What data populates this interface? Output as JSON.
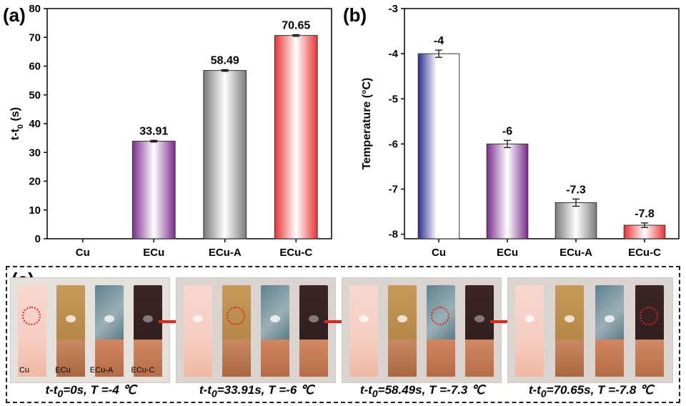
{
  "panels": {
    "a": "(a)",
    "b": "(b)",
    "c": "(c)"
  },
  "chart_data": [
    {
      "type": "bar",
      "title": "",
      "ylabel": "t-t0 (s)",
      "ylabel_main": "t-t",
      "ylabel_sub": "0",
      "ylabel_unit": " (s)",
      "categories": [
        "Cu",
        "ECu",
        "ECu-A",
        "ECu-C"
      ],
      "values": [
        null,
        33.91,
        58.49,
        70.65
      ],
      "data_labels": [
        "",
        "33.91",
        "58.49",
        "70.65"
      ],
      "ylim": [
        0,
        80
      ],
      "yticks": [
        0,
        10,
        20,
        30,
        40,
        50,
        60,
        70,
        80
      ],
      "error": [
        0,
        0.3,
        0.3,
        0.3
      ],
      "bar_colors": [
        "#2f2f8f",
        "#7b2d8e",
        "#7a7a7a",
        "#e83333"
      ]
    },
    {
      "type": "bar",
      "title": "",
      "ylabel": "Temperature (°C)",
      "categories": [
        "Cu",
        "ECu",
        "ECu-A",
        "ECu-C"
      ],
      "values": [
        -4,
        -6,
        -7.3,
        -7.8
      ],
      "data_labels": [
        "-4",
        "-6",
        "-7.3",
        "-7.8"
      ],
      "ylim": [
        -8.1,
        -3
      ],
      "baseline": -8.1,
      "yticks": [
        -8,
        -7,
        -6,
        -5,
        -4,
        -3
      ],
      "error": [
        0.08,
        0.08,
        0.08,
        0.05
      ],
      "bar_colors": [
        "#2b2f8c",
        "#7b2d8e",
        "#7a7a7a",
        "#e83333"
      ]
    }
  ],
  "photos": {
    "strip_labels": [
      "Cu",
      "ECu",
      "ECu-A",
      "ECu-C"
    ],
    "captions": [
      {
        "pre": "t-t",
        "sub": "0",
        "post": "=0s, T =-4 ℃"
      },
      {
        "pre": "t-t",
        "sub": "0",
        "post": "=33.91s, T =-6 ℃"
      },
      {
        "pre": "t-t",
        "sub": "0",
        "post": "=58.49s, T =-7.3 ℃"
      },
      {
        "pre": "t-t",
        "sub": "0",
        "post": "=70.65s, T =-7.8 ℃"
      }
    ]
  }
}
